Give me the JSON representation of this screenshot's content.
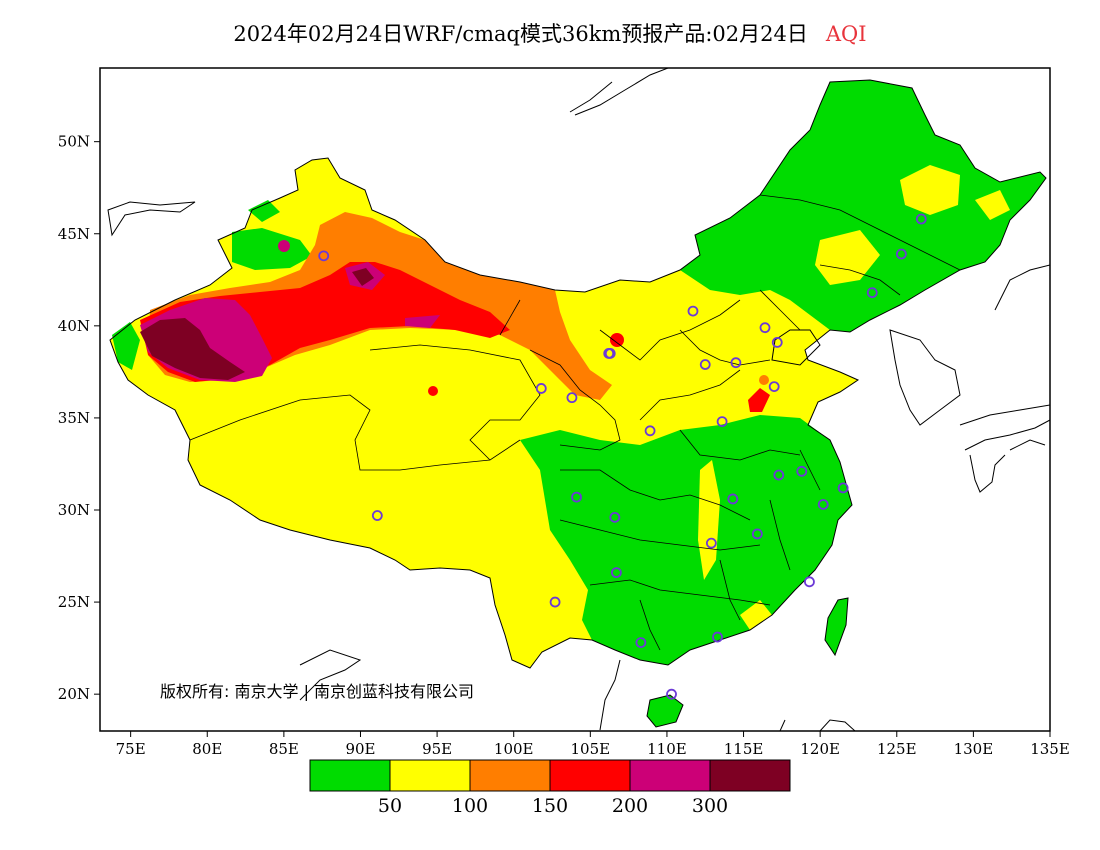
{
  "title": {
    "main": "2024年02月24日WRF/cmaq模式36km预报产品:02月24日",
    "variable": "AQI",
    "variable_color": "#e8343c"
  },
  "map": {
    "lon_range": [
      73,
      135
    ],
    "lat_range": [
      18,
      54
    ],
    "lon_ticks": [
      "75E",
      "80E",
      "85E",
      "90E",
      "95E",
      "100E",
      "105E",
      "110E",
      "115E",
      "120E",
      "125E",
      "130E",
      "135E"
    ],
    "lat_ticks": [
      "20N",
      "25N",
      "30N",
      "35N",
      "40N",
      "45N",
      "50N"
    ],
    "credit": "版权所有: 南京大学 | 南京创蓝科技有限公司"
  },
  "colors": {
    "good": "#00dc00",
    "moderate": "#ffff00",
    "usg": "#ff7e00",
    "unhealthy": "#ff0000",
    "very_unhealthy": "#cc0077",
    "hazardous": "#7e0023",
    "station": "#6c3ad6"
  },
  "colorbar": {
    "colors": [
      "#00dc00",
      "#ffff00",
      "#ff7e00",
      "#ff0000",
      "#cc0077",
      "#7e0023"
    ],
    "labels": [
      "50",
      "100",
      "150",
      "200",
      "300"
    ]
  },
  "stations_lonlat": [
    [
      87.6,
      43.8
    ],
    [
      91.1,
      29.7
    ],
    [
      101.8,
      36.6
    ],
    [
      103.8,
      36.1
    ],
    [
      106.3,
      38.5
    ],
    [
      106.6,
      29.6
    ],
    [
      104.1,
      30.7
    ],
    [
      102.7,
      25.0
    ],
    [
      106.7,
      26.6
    ],
    [
      108.3,
      22.8
    ],
    [
      110.3,
      20.0
    ],
    [
      113.3,
      23.1
    ],
    [
      112.9,
      28.2
    ],
    [
      114.3,
      30.6
    ],
    [
      115.9,
      28.7
    ],
    [
      118.8,
      32.1
    ],
    [
      117.3,
      31.9
    ],
    [
      120.2,
      30.3
    ],
    [
      121.5,
      31.2
    ],
    [
      119.3,
      26.1
    ],
    [
      113.6,
      34.8
    ],
    [
      108.9,
      34.3
    ],
    [
      112.5,
      37.9
    ],
    [
      114.5,
      38.0
    ],
    [
      117.0,
      36.7
    ],
    [
      117.2,
      39.1
    ],
    [
      116.4,
      39.9
    ],
    [
      111.7,
      40.8
    ],
    [
      123.4,
      41.8
    ],
    [
      125.3,
      43.9
    ],
    [
      126.6,
      45.8
    ],
    [
      106.2,
      38.5
    ]
  ]
}
